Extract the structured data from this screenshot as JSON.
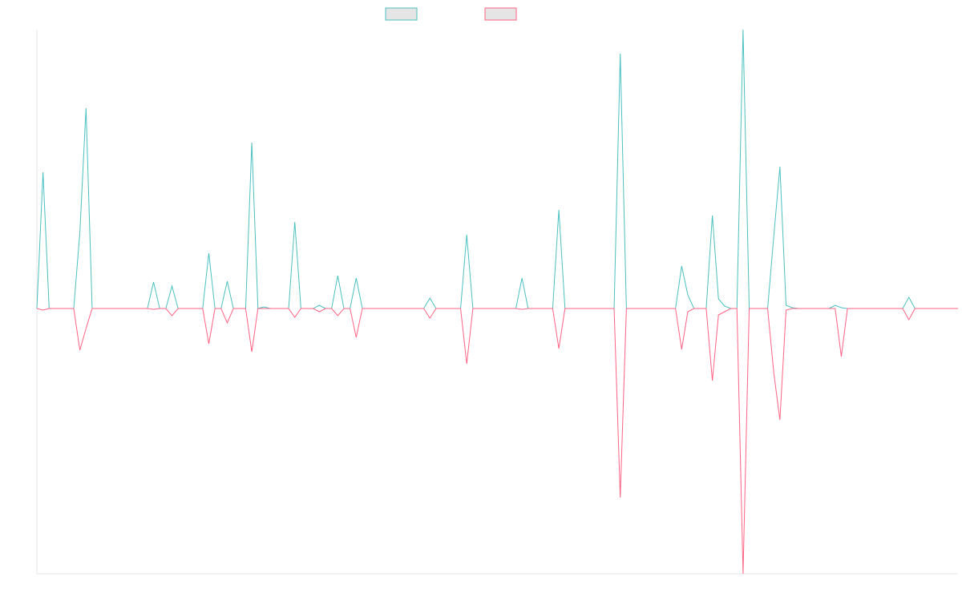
{
  "chart_data": {
    "type": "line",
    "series": [
      {
        "color": "#4bc0c0",
        "values": [
          0,
          170,
          0,
          0,
          0,
          0,
          0,
          95,
          250,
          0,
          0,
          0,
          0,
          0,
          0,
          0,
          0,
          0,
          0,
          33,
          0,
          0,
          28,
          0,
          0,
          0,
          0,
          0,
          69,
          0,
          0,
          34,
          0,
          0,
          0,
          207,
          0,
          2,
          0,
          0,
          0,
          0,
          108,
          0,
          0,
          0,
          4,
          0,
          0,
          41,
          0,
          0,
          38,
          0,
          0,
          0,
          0,
          0,
          0,
          0,
          0,
          0,
          0,
          0,
          13,
          0,
          0,
          0,
          0,
          0,
          92,
          0,
          0,
          0,
          0,
          0,
          0,
          0,
          0,
          38,
          0,
          0,
          0,
          0,
          0,
          123,
          0,
          0,
          0,
          0,
          0,
          0,
          0,
          0,
          0,
          318,
          0,
          0,
          0,
          0,
          0,
          0,
          0,
          0,
          0,
          53,
          17,
          0,
          0,
          0,
          116,
          12,
          3,
          0,
          0,
          348,
          0,
          0,
          0,
          0,
          90,
          177,
          4,
          1,
          0,
          0,
          0,
          0,
          0,
          0,
          4,
          1,
          0,
          0,
          0,
          0,
          0,
          0,
          0,
          0,
          0,
          0,
          14,
          0,
          0,
          0,
          0,
          0,
          0,
          0,
          0
        ]
      },
      {
        "color": "#ff6384",
        "values": [
          0,
          -2,
          0,
          0,
          0,
          0,
          0,
          -52,
          -25,
          0,
          0,
          0,
          0,
          0,
          0,
          0,
          0,
          0,
          0,
          -1,
          0,
          0,
          -9,
          0,
          0,
          0,
          0,
          0,
          -44,
          0,
          0,
          -18,
          0,
          0,
          0,
          -54,
          0,
          0,
          0,
          0,
          0,
          0,
          -11,
          0,
          0,
          0,
          -4,
          0,
          0,
          -9,
          0,
          0,
          -36,
          0,
          0,
          0,
          0,
          0,
          0,
          0,
          0,
          0,
          0,
          0,
          -12,
          0,
          0,
          0,
          0,
          0,
          -69,
          0,
          0,
          0,
          0,
          0,
          0,
          0,
          0,
          -1,
          0,
          0,
          0,
          0,
          0,
          -50,
          0,
          0,
          0,
          0,
          0,
          0,
          0,
          0,
          0,
          -236,
          0,
          0,
          0,
          0,
          0,
          0,
          0,
          0,
          0,
          -51,
          -4,
          0,
          0,
          0,
          -90,
          -8,
          -4,
          0,
          0,
          -331,
          0,
          0,
          0,
          0,
          -80,
          -139,
          -2,
          0,
          0,
          0,
          0,
          0,
          0,
          0,
          0,
          -60,
          0,
          0,
          0,
          0,
          0,
          0,
          0,
          0,
          0,
          0,
          -14,
          0,
          0,
          0,
          0,
          0,
          0,
          0,
          0
        ]
      }
    ],
    "ylim": [
      -331,
      348
    ]
  }
}
